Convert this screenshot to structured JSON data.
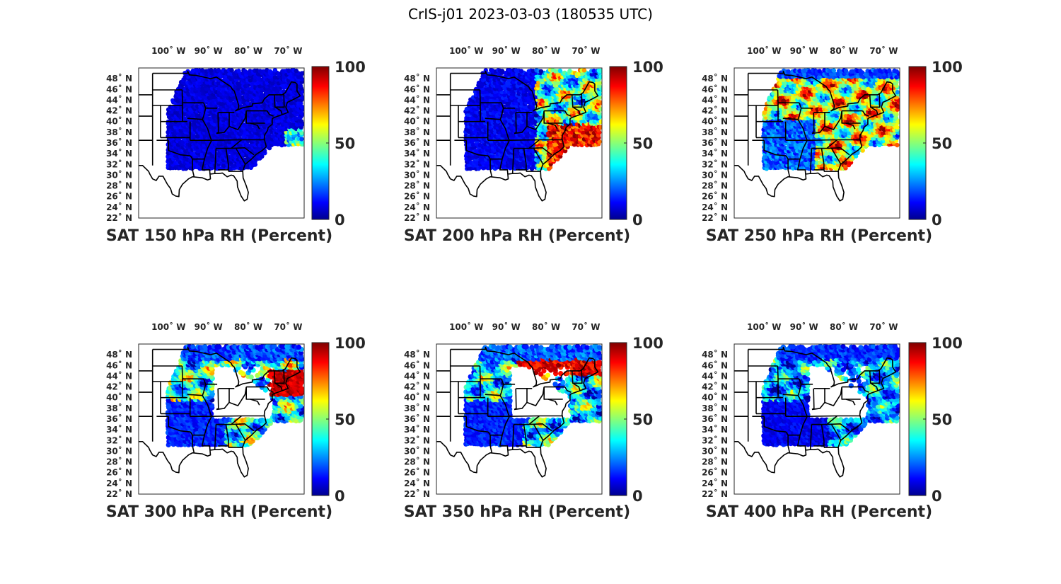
{
  "figure": {
    "title": "CrIS-j01 2023-03-03 (180535 UTC)"
  },
  "colormap": {
    "name": "jet",
    "stops": [
      "#00008f",
      "#0000ff",
      "#00ffff",
      "#ffff00",
      "#ff0000",
      "#800000"
    ]
  },
  "map": {
    "lon_range": [
      -107.5,
      -66
    ],
    "lat_range": [
      22,
      50
    ],
    "lon_ticks": [
      {
        "value": -100,
        "label": "100˚ W"
      },
      {
        "value": -90,
        "label": "90˚ W"
      },
      {
        "value": -80,
        "label": "80˚ W"
      },
      {
        "value": -70,
        "label": "70˚ W"
      }
    ],
    "lat_ticks": [
      {
        "value": 48,
        "label": "48˚ N"
      },
      {
        "value": 46,
        "label": "46˚ N"
      },
      {
        "value": 44,
        "label": "44˚ N"
      },
      {
        "value": 42,
        "label": "42˚ N"
      },
      {
        "value": 40,
        "label": "40˚ N"
      },
      {
        "value": 38,
        "label": "38˚ N"
      },
      {
        "value": 36,
        "label": "36˚ N"
      },
      {
        "value": 34,
        "label": "34˚ N"
      },
      {
        "value": 32,
        "label": "32˚ N"
      },
      {
        "value": 30,
        "label": "30˚ N"
      },
      {
        "value": 28,
        "label": "28˚ N"
      },
      {
        "value": 26,
        "label": "26˚ N"
      },
      {
        "value": 24,
        "label": "24˚ N"
      },
      {
        "value": 22,
        "label": "22˚ N"
      }
    ]
  },
  "chart_data": [
    {
      "type": "scatter",
      "variable": "RH",
      "level_hpa": 150,
      "title": "SAT 150 hPa RH (Percent)",
      "colorbar": {
        "range": [
          0,
          100
        ],
        "ticks": [
          "0",
          "50",
          "100"
        ]
      },
      "regime": "dry"
    },
    {
      "type": "scatter",
      "variable": "RH",
      "level_hpa": 200,
      "title": "SAT 200 hPa RH (Percent)",
      "colorbar": {
        "range": [
          0,
          100
        ],
        "ticks": [
          "0",
          "50",
          "100"
        ]
      },
      "regime": "mixed_east"
    },
    {
      "type": "scatter",
      "variable": "RH",
      "level_hpa": 250,
      "title": "SAT 250 hPa RH (Percent)",
      "colorbar": {
        "range": [
          0,
          100
        ],
        "ticks": [
          "0",
          "50",
          "100"
        ]
      },
      "regime": "moist"
    },
    {
      "type": "scatter",
      "variable": "RH",
      "level_hpa": 300,
      "title": "SAT 300 hPa RH (Percent)",
      "colorbar": {
        "range": [
          0,
          100
        ],
        "ticks": [
          "0",
          "50",
          "100"
        ]
      },
      "regime": "sparse_moist"
    },
    {
      "type": "scatter",
      "variable": "RH",
      "level_hpa": 350,
      "title": "SAT 350 hPa RH (Percent)",
      "colorbar": {
        "range": [
          0,
          100
        ],
        "ticks": [
          "0",
          "50",
          "100"
        ]
      },
      "regime": "sparse_mixed"
    },
    {
      "type": "scatter",
      "variable": "RH",
      "level_hpa": 400,
      "title": "SAT 400 hPa RH (Percent)",
      "colorbar": {
        "range": [
          0,
          100
        ],
        "ticks": [
          "0",
          "50",
          "100"
        ]
      },
      "regime": "sparse_dry"
    }
  ]
}
